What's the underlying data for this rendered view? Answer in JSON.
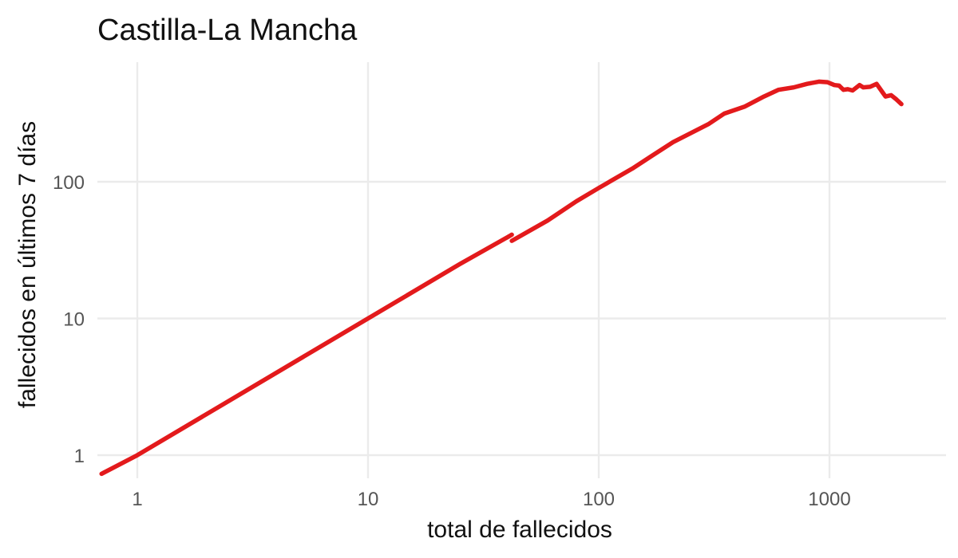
{
  "chart_data": {
    "type": "line",
    "title": "Castilla-La Mancha",
    "xlabel": "total de fallecidos",
    "ylabel": "fallecidos en últimos 7 días",
    "x_scale": "log",
    "y_scale": "log",
    "xlim": [
      0.7,
      2300
    ],
    "ylim": [
      0.73,
      900
    ],
    "x_ticks": [
      {
        "value": 1,
        "label": "1"
      },
      {
        "value": 10,
        "label": "10"
      },
      {
        "value": 100,
        "label": "100"
      },
      {
        "value": 1000,
        "label": "1000"
      }
    ],
    "y_ticks": [
      {
        "value": 1,
        "label": "1"
      },
      {
        "value": 10,
        "label": "10"
      },
      {
        "value": 100,
        "label": "100"
      }
    ],
    "grid": true,
    "legend": "none",
    "series": [
      {
        "color": "#e31a1c",
        "segments": [
          [
            [
              0.7,
              0.73
            ],
            [
              1,
              1
            ],
            [
              10,
              10
            ],
            [
              25,
              25
            ],
            [
              41,
              40
            ],
            [
              42,
              41
            ]
          ],
          [
            [
              42,
              37
            ],
            [
              60,
              52
            ],
            [
              80,
              72
            ],
            [
              100,
              90
            ],
            [
              140,
              125
            ],
            [
              170,
              155
            ],
            [
              210,
              195
            ],
            [
              300,
              265
            ],
            [
              350,
              315
            ],
            [
              430,
              355
            ],
            [
              520,
              420
            ],
            [
              600,
              470
            ],
            [
              700,
              490
            ],
            [
              800,
              520
            ],
            [
              900,
              540
            ],
            [
              980,
              535
            ],
            [
              1050,
              510
            ],
            [
              1100,
              505
            ],
            [
              1150,
              470
            ],
            [
              1200,
              475
            ],
            [
              1260,
              465
            ],
            [
              1350,
              510
            ],
            [
              1400,
              490
            ],
            [
              1500,
              495
            ],
            [
              1600,
              520
            ],
            [
              1700,
              450
            ],
            [
              1750,
              420
            ],
            [
              1850,
              430
            ],
            [
              1950,
              400
            ],
            [
              2050,
              370
            ]
          ]
        ]
      }
    ]
  }
}
